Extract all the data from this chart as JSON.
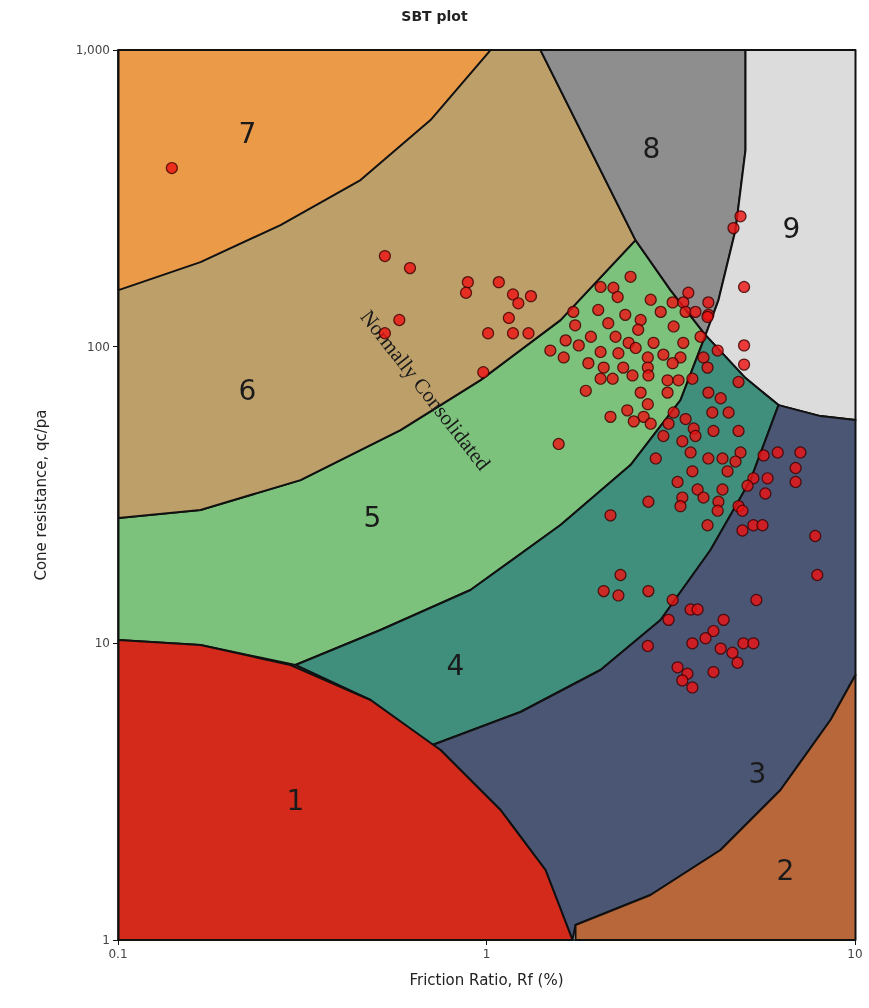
{
  "chart_data": {
    "type": "scatter",
    "title": "SBT plot",
    "xlabel": "Friction Ratio, Rf (%)",
    "ylabel": "Cone resistance, qc/pa",
    "log": "xy",
    "marker": "circle",
    "xlim": [
      0.1,
      10
    ],
    "xticks": [
      0.1,
      1,
      10
    ],
    "ylim": [
      1,
      1000
    ],
    "yticks": [
      1,
      10,
      100,
      {
        "value": 1000,
        "label": "1,000"
      }
    ],
    "annotations": [
      "1",
      "2",
      "3",
      "4",
      "5",
      "6",
      "7",
      "8",
      "9",
      "Normally Consolidated"
    ],
    "series": [
      {
        "color": "#ee1111",
        "x": [
          0.14,
          0.53,
          0.62,
          0.89,
          0.88,
          1.08,
          1.18,
          1.32,
          1.22,
          1.15,
          0.58,
          0.53,
          1.01,
          1.18,
          1.3,
          0.98,
          1.49,
          2.46,
          2.04,
          2.21,
          2.27,
          2.79,
          3.53,
          4.0,
          3.2,
          3.42,
          1.72,
          2.01,
          2.38,
          2.62,
          2.97,
          3.47,
          3.69,
          4.0,
          1.74,
          2.14,
          2.58,
          3.22,
          3.81,
          1.64,
          1.78,
          1.92,
          2.24,
          2.43,
          2.84,
          3.42,
          4.24,
          1.62,
          2.04,
          2.28,
          2.54,
          2.74,
          3.02,
          3.36,
          3.88,
          1.89,
          2.08,
          2.35,
          2.74,
          3.2,
          3.98,
          2.04,
          2.2,
          2.49,
          2.75,
          3.1,
          3.32,
          3.62,
          1.86,
          2.62,
          3.1,
          4.0,
          4.89,
          4.68,
          5.0,
          3.98,
          5.0,
          5.0,
          4.83,
          4.32,
          2.17,
          2.41,
          2.74,
          2.67,
          3.22,
          3.47,
          4.1,
          4.54,
          2.51,
          2.79,
          3.12,
          3.65,
          4.13,
          4.83,
          3.02,
          3.69,
          1.57,
          3.4,
          3.58,
          2.88,
          4.0,
          4.37,
          4.89,
          5.65,
          6.17,
          7.11,
          4.74,
          4.51,
          5.3,
          5.79,
          6.9,
          3.62,
          3.3,
          3.74,
          4.37,
          5.11,
          5.71,
          6.9,
          3.4,
          3.88,
          4.26,
          2.75,
          3.36,
          4.24,
          4.83,
          2.17,
          3.98,
          4.95,
          5.3,
          5.61,
          4.95,
          7.8,
          2.08,
          2.31,
          2.28,
          2.75,
          7.9,
          5.4,
          3.2,
          3.58,
          3.74,
          3.12,
          4.4,
          4.13,
          3.93,
          3.62,
          4.98,
          5.3,
          4.32,
          4.65,
          4.8,
          2.74,
          3.3,
          3.51,
          3.4,
          3.62,
          4.13
        ],
        "values": [
          400,
          202,
          184,
          165,
          152,
          165,
          150,
          148,
          140,
          125,
          123,
          111,
          111,
          111,
          111,
          82,
          97,
          172,
          159,
          158,
          147,
          144,
          152,
          141,
          141,
          141,
          131,
          133,
          128,
          123,
          131,
          131,
          131,
          128,
          118,
          120,
          114,
          117,
          108,
          105,
          101,
          108,
          108,
          103,
          103,
          103,
          97,
          92,
          96,
          95,
          99,
          92,
          94,
          92,
          92,
          88,
          85,
          85,
          85,
          88,
          85,
          78,
          78,
          80,
          80,
          77,
          77,
          78,
          71,
          70,
          70,
          70,
          275,
          251,
          159,
          126,
          101,
          87,
          76,
          67,
          58,
          61,
          64,
          58,
          60,
          57,
          60,
          60,
          56,
          55,
          55,
          53,
          52,
          52,
          50,
          50,
          47,
          48,
          44,
          42,
          42,
          42,
          44,
          43,
          44,
          44,
          41,
          38,
          36,
          36,
          39,
          38,
          35,
          33,
          33,
          34,
          32,
          35,
          31,
          31,
          30,
          30,
          29,
          28,
          29,
          27,
          25,
          28,
          25,
          25,
          24,
          23,
          15,
          17,
          14.5,
          15,
          17,
          14,
          14,
          13,
          13,
          12,
          12,
          11,
          10.4,
          10,
          10,
          10,
          9.6,
          9.3,
          8.6,
          9.8,
          8.3,
          7.9,
          7.5,
          7.1,
          8
        ]
      }
    ]
  }
}
